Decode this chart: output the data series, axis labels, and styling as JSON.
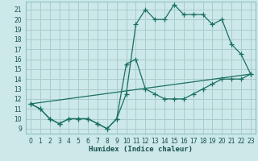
{
  "title": "",
  "xlabel": "Humidex (Indice chaleur)",
  "bg_color": "#cce8e8",
  "grid_color": "#aacccc",
  "line_color": "#1a7060",
  "spine_color": "#6aacac",
  "tick_color": "#1a5050",
  "xlim": [
    -0.5,
    23.5
  ],
  "ylim": [
    8.5,
    21.8
  ],
  "yticks": [
    9,
    10,
    11,
    12,
    13,
    14,
    15,
    16,
    17,
    18,
    19,
    20,
    21
  ],
  "xticks": [
    0,
    1,
    2,
    3,
    4,
    5,
    6,
    7,
    8,
    9,
    10,
    11,
    12,
    13,
    14,
    15,
    16,
    17,
    18,
    19,
    20,
    21,
    22,
    23
  ],
  "line1_x": [
    0,
    1,
    2,
    3,
    4,
    5,
    6,
    7,
    8,
    9,
    10,
    11,
    12,
    13,
    14,
    15,
    16,
    17,
    18,
    19,
    20,
    21,
    22,
    23
  ],
  "line1_y": [
    11.5,
    11.0,
    10.0,
    9.5,
    10.0,
    10.0,
    10.0,
    9.5,
    9.0,
    10.0,
    12.5,
    19.5,
    21.0,
    20.0,
    20.0,
    21.5,
    20.5,
    20.5,
    20.5,
    19.5,
    20.0,
    17.5,
    16.5,
    14.5
  ],
  "line2_x": [
    0,
    1,
    2,
    3,
    4,
    5,
    6,
    7,
    8,
    9,
    10,
    11,
    12,
    13,
    14,
    15,
    16,
    17,
    18,
    19,
    20,
    21,
    22,
    23
  ],
  "line2_y": [
    11.5,
    11.0,
    10.0,
    9.5,
    10.0,
    10.0,
    10.0,
    9.5,
    9.0,
    10.0,
    15.5,
    16.0,
    13.0,
    12.5,
    12.0,
    12.0,
    12.0,
    12.5,
    13.0,
    13.5,
    14.0,
    14.0,
    14.0,
    14.5
  ],
  "line3_x": [
    0,
    23
  ],
  "line3_y": [
    11.5,
    14.5
  ],
  "xlabel_fontsize": 6.5,
  "tick_fontsize": 5.5
}
